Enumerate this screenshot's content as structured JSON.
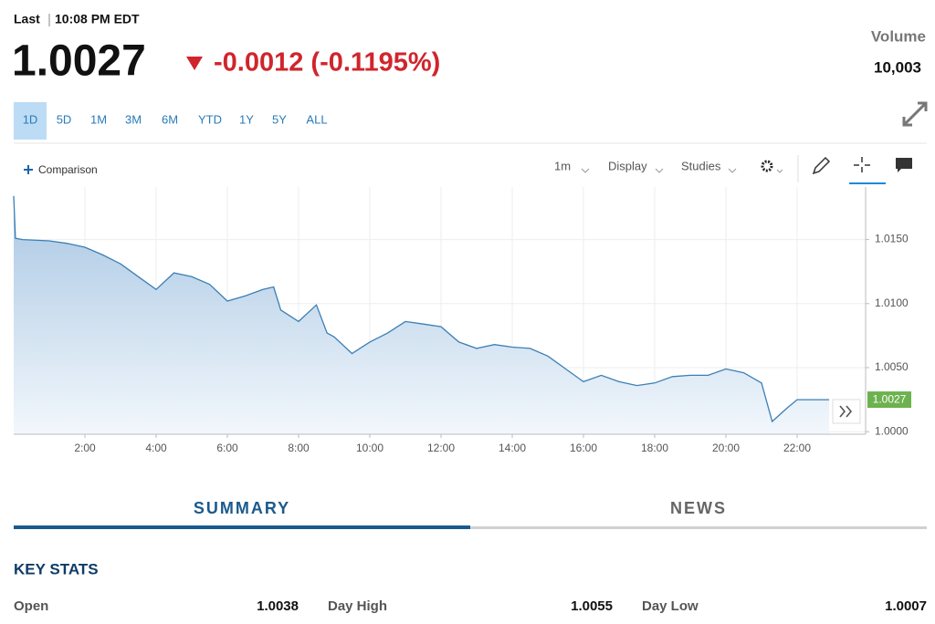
{
  "header": {
    "last_label": "Last",
    "time": "10:08 PM EDT",
    "price": "1.0027",
    "change": "-0.0012 (-0.1195%)",
    "volume_label": "Volume",
    "volume": "10,003"
  },
  "ranges": [
    "1D",
    "5D",
    "1M",
    "3M",
    "6M",
    "YTD",
    "1Y",
    "5Y",
    "ALL"
  ],
  "toolbar": {
    "comparison": "Comparison",
    "interval": "1m",
    "display": "Display",
    "studies": "Studies"
  },
  "chart_data": {
    "type": "line",
    "color": "#3a7fb5",
    "grid": true,
    "x": [
      0,
      0.05,
      0.25,
      1,
      1.5,
      2,
      2.5,
      3,
      3.5,
      4,
      4.5,
      5,
      5.5,
      6,
      6.5,
      7,
      7.3,
      7.5,
      8,
      8.5,
      8.8,
      9,
      9.5,
      10,
      10.5,
      11,
      11.5,
      12,
      12.5,
      13,
      13.5,
      14,
      14.5,
      15,
      15.5,
      16,
      16.5,
      17,
      17.5,
      18,
      18.5,
      19,
      19.5,
      20,
      20.5,
      21,
      21.3,
      21.7,
      22,
      22.5,
      22.9
    ],
    "values": [
      1.0184,
      1.0151,
      1.015,
      1.0149,
      1.0147,
      1.0144,
      1.0138,
      1.0131,
      1.0121,
      1.0111,
      1.0124,
      1.0121,
      1.0115,
      1.0102,
      1.0106,
      1.0111,
      1.0113,
      1.0095,
      1.0086,
      1.0099,
      1.0077,
      1.0074,
      1.0061,
      1.007,
      1.0077,
      1.0086,
      1.0084,
      1.0082,
      1.007,
      1.0065,
      1.0068,
      1.0066,
      1.0065,
      1.0059,
      1.0049,
      1.0039,
      1.0044,
      1.0039,
      1.0036,
      1.0038,
      1.0043,
      1.0044,
      1.0044,
      1.0049,
      1.0046,
      1.0038,
      1.0008,
      1.0018,
      1.0025,
      1.0025,
      1.0025
    ],
    "xlim": [
      0,
      24
    ],
    "ylim": [
      0.9998,
      1.0191
    ],
    "xticks": [
      {
        "value": 2,
        "label": "2:00"
      },
      {
        "value": 4,
        "label": "4:00"
      },
      {
        "value": 6,
        "label": "6:00"
      },
      {
        "value": 8,
        "label": "8:00"
      },
      {
        "value": 10,
        "label": "10:00"
      },
      {
        "value": 12,
        "label": "12:00"
      },
      {
        "value": 14,
        "label": "14:00"
      },
      {
        "value": 16,
        "label": "16:00"
      },
      {
        "value": 18,
        "label": "18:00"
      },
      {
        "value": 20,
        "label": "20:00"
      },
      {
        "value": 22,
        "label": "22:00"
      }
    ],
    "yticks": [
      {
        "value": 1.0,
        "label": "1.0000"
      },
      {
        "value": 1.005,
        "label": "1.0050"
      },
      {
        "value": 1.01,
        "label": "1.0100"
      },
      {
        "value": 1.015,
        "label": "1.0150"
      }
    ]
  },
  "tabs": [
    "SUMMARY",
    "NEWS"
  ],
  "key_stats": {
    "title": "KEY STATS",
    "items": [
      {
        "label": "Open",
        "value": "1.0038"
      },
      {
        "label": "Day High",
        "value": "1.0055"
      },
      {
        "label": "Day Low",
        "value": "1.0007"
      }
    ]
  }
}
